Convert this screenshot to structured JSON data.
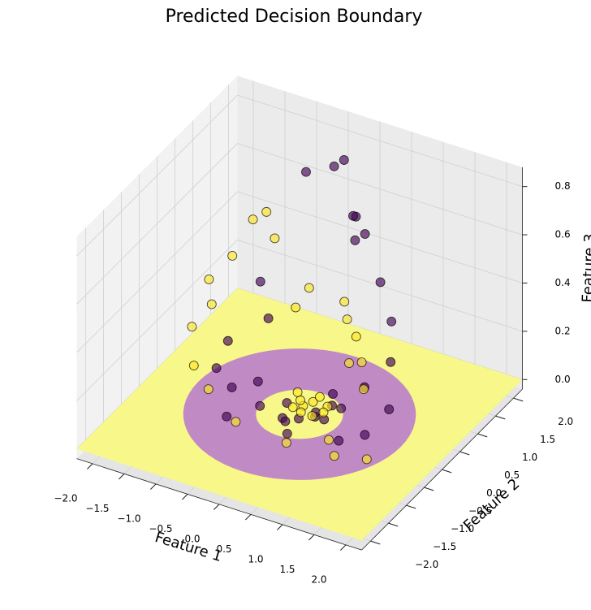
{
  "chart_data": {
    "type": "scatter3d",
    "title": "Predicted Decision Boundary",
    "xlabel": "Feature 1",
    "ylabel": "Feature 2",
    "zlabel": "Feature 3",
    "xlim": [
      -2.25,
      2.25
    ],
    "ylim": [
      -2.25,
      2.25
    ],
    "zlim": [
      -0.04,
      0.88
    ],
    "xticks": [
      {
        "value": -2.0,
        "label": "−2.0"
      },
      {
        "value": -1.5,
        "label": "−1.5"
      },
      {
        "value": -1.0,
        "label": "−1.0"
      },
      {
        "value": -0.5,
        "label": "−0.5"
      },
      {
        "value": 0,
        "label": "0.0"
      },
      {
        "value": 0.5,
        "label": "0.5"
      },
      {
        "value": 1.0,
        "label": "1.0"
      },
      {
        "value": 1.5,
        "label": "1.5"
      },
      {
        "value": 2.0,
        "label": "2.0"
      }
    ],
    "yticks": [
      {
        "value": -2.0,
        "label": "−2.0"
      },
      {
        "value": -1.5,
        "label": "−1.5"
      },
      {
        "value": -1.0,
        "label": "−1.0"
      },
      {
        "value": -0.5,
        "label": "−0.5"
      },
      {
        "value": 0,
        "label": "0.0"
      },
      {
        "value": 0.5,
        "label": "0.5"
      },
      {
        "value": 1.0,
        "label": "1.0"
      },
      {
        "value": 1.5,
        "label": "1.5"
      },
      {
        "value": 2.0,
        "label": "2.0"
      }
    ],
    "zticks": [
      {
        "value": 0,
        "label": "0.0"
      },
      {
        "value": 0.2,
        "label": "0.2"
      },
      {
        "value": 0.4,
        "label": "0.4"
      },
      {
        "value": 0.6,
        "label": "0.6"
      },
      {
        "value": 0.8,
        "label": "0.8"
      }
    ],
    "grid": true,
    "surface": {
      "z": 0,
      "ring": [
        0.6,
        1.6
      ],
      "colors": [
        "#f7f78a",
        "#c08ac4"
      ]
    },
    "series": [
      {
        "color": "#440154",
        "x": [
          -0.2,
          -0.3,
          -0.8,
          0.1,
          0.0,
          0.3,
          0.2,
          0.6,
          1.0,
          -0.9,
          1.1,
          -1.3,
          -1.2,
          -0.6,
          0.8,
          1.3,
          -1.0,
          0.1,
          0.3,
          0.2,
          -0.1,
          0.4,
          0.0,
          0.5,
          -0.2,
          0.3,
          0.6,
          -0.4,
          0.9,
          -0.7,
          0.2,
          1.2,
          -0.9
        ],
        "y": [
          1.6,
          1.5,
          1.6,
          1.4,
          1.5,
          1.3,
          1.2,
          1.2,
          0.8,
          0.5,
          0.6,
          0.3,
          -0.2,
          -0.1,
          0.4,
          0.2,
          0.9,
          -0.2,
          -0.1,
          0.1,
          -0.3,
          0.2,
          -0.4,
          -0.2,
          0.0,
          0.4,
          0.1,
          -0.4,
          -0.5,
          -0.8,
          -0.7,
          -0.3,
          -0.3
        ],
        "z": [
          0.8,
          0.78,
          0.7,
          0.62,
          0.6,
          0.58,
          0.56,
          0.42,
          0.35,
          0.4,
          0.22,
          0.15,
          0.12,
          0.1,
          0.12,
          0.1,
          0.18,
          0.02,
          0.03,
          0.01,
          0.02,
          0.04,
          0.03,
          0.05,
          0.03,
          0.05,
          0.06,
          0.06,
          0.04,
          0.05,
          0.04,
          0.06,
          0.08
        ]
      },
      {
        "color": "#fde725",
        "x": [
          -1.3,
          -1.2,
          -0.9,
          -1.4,
          -1.6,
          -1.5,
          -0.3,
          -0.4,
          0.2,
          0.3,
          0.5,
          0.5,
          -1.7,
          -1.5,
          -1.1,
          -0.5,
          0.3,
          0.8,
          1.0,
          1.4,
          0.9,
          0.7,
          0.0,
          0.1,
          -0.1,
          0.2,
          0.05,
          0.15,
          -0.2,
          0.3,
          0.35,
          -0.05
        ],
        "y": [
          1.0,
          1.2,
          0.9,
          0.6,
          0.3,
          0.2,
          0.8,
          0.6,
          0.9,
          0.8,
          0.7,
          0.5,
          0.0,
          -0.3,
          -0.6,
          -0.9,
          -0.9,
          -0.6,
          -0.8,
          -0.6,
          0.2,
          0.5,
          0.1,
          0.2,
          0.2,
          0.0,
          -0.05,
          0.3,
          0.3,
          0.25,
          0.05,
          -0.1
        ],
        "z": [
          0.55,
          0.56,
          0.52,
          0.45,
          0.38,
          0.3,
          0.38,
          0.32,
          0.35,
          0.3,
          0.26,
          0.18,
          0.22,
          0.12,
          0.1,
          0.06,
          0.04,
          0.05,
          0.03,
          0.02,
          0.15,
          0.2,
          0.02,
          0.03,
          0.02,
          0.01,
          0.02,
          0.04,
          0.03,
          0.02,
          0.03,
          0.04
        ]
      }
    ]
  }
}
